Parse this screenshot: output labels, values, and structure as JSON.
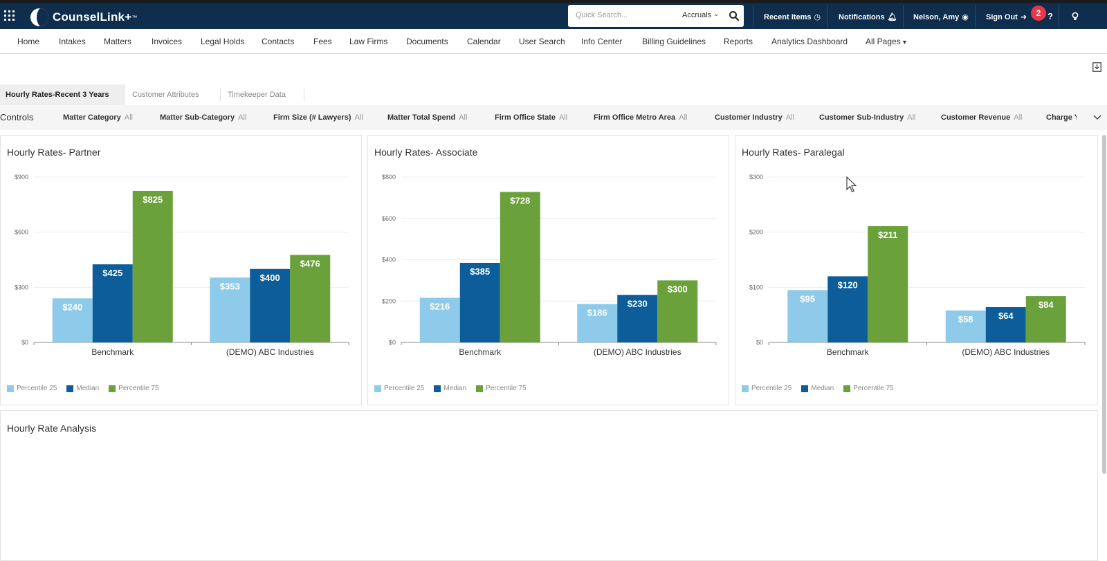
{
  "app": {
    "name": "CounselLink+",
    "tm": "™"
  },
  "search": {
    "placeholder": "Quick Search...",
    "scope": "Accruals"
  },
  "topnav": {
    "recent_items": "Recent Items",
    "notifications": "Notifications",
    "user": "Nelson, Amy",
    "sign_out": "Sign Out",
    "badge_count": "2",
    "help": "?"
  },
  "menu": {
    "items": [
      "Home",
      "Intakes",
      "Matters",
      "Invoices",
      "Legal Holds",
      "Contacts",
      "Fees",
      "Law Firms",
      "Documents",
      "Calendar",
      "User Search",
      "Info Center",
      "Billing Guidelines",
      "Reports",
      "Analytics Dashboard",
      "All Pages"
    ]
  },
  "tabs": [
    "Hourly Rates-Recent 3 Years",
    "Customer Attributes",
    "Timekeeper Data"
  ],
  "controls": {
    "label": "Controls",
    "filters": [
      {
        "name": "Matter Category",
        "value": "All"
      },
      {
        "name": "Matter Sub-Category",
        "value": "All"
      },
      {
        "name": "Firm Size (# Lawyers)",
        "value": "All"
      },
      {
        "name": "Matter Total Spend",
        "value": "All"
      },
      {
        "name": "Firm Office State",
        "value": "All"
      },
      {
        "name": "Firm Office Metro Area",
        "value": "All"
      },
      {
        "name": "Customer Industry",
        "value": "All"
      },
      {
        "name": "Customer Sub-Industry",
        "value": "All"
      },
      {
        "name": "Customer Revenue",
        "value": "All"
      },
      {
        "name": "Charge Y",
        "value": ""
      }
    ]
  },
  "colors": {
    "p25": "#8ecbeb",
    "median": "#0c5d99",
    "p75": "#6aa13a",
    "navy": "#0f2d4d"
  },
  "legend": [
    "Percentile 25",
    "Median",
    "Percentile 75"
  ],
  "chart_data": [
    {
      "type": "bar",
      "title": "Hourly Rates- Partner",
      "categories": [
        "Benchmark",
        "(DEMO) ABC Industries"
      ],
      "series": [
        {
          "name": "Percentile 25",
          "values": [
            240,
            353
          ]
        },
        {
          "name": "Median",
          "values": [
            425,
            400
          ]
        },
        {
          "name": "Percentile 75",
          "values": [
            825,
            476
          ]
        }
      ],
      "data_labels": [
        [
          "$240",
          "$353"
        ],
        [
          "$425",
          "$400"
        ],
        [
          "$825",
          "$476"
        ]
      ],
      "yticks": [
        0,
        300,
        600,
        900
      ],
      "ytick_labels": [
        "$0",
        "$300",
        "$600",
        "$900"
      ],
      "ylim": [
        0,
        900
      ],
      "legend": "bottom-left"
    },
    {
      "type": "bar",
      "title": "Hourly Rates- Associate",
      "categories": [
        "Benchmark",
        "(DEMO) ABC Industries"
      ],
      "series": [
        {
          "name": "Percentile 25",
          "values": [
            216,
            186
          ]
        },
        {
          "name": "Median",
          "values": [
            385,
            230
          ]
        },
        {
          "name": "Percentile 75",
          "values": [
            728,
            300
          ]
        }
      ],
      "data_labels": [
        [
          "$216",
          "$186"
        ],
        [
          "$385",
          "$230"
        ],
        [
          "$728",
          "$300"
        ]
      ],
      "yticks": [
        0,
        200,
        400,
        600,
        800
      ],
      "ytick_labels": [
        "$0",
        "$200",
        "$400",
        "$600",
        "$800"
      ],
      "ylim": [
        0,
        800
      ],
      "legend": "bottom-left"
    },
    {
      "type": "bar",
      "title": "Hourly Rates- Paralegal",
      "categories": [
        "Benchmark",
        "(DEMO) ABC Industries"
      ],
      "series": [
        {
          "name": "Percentile 25",
          "values": [
            95,
            58
          ]
        },
        {
          "name": "Median",
          "values": [
            120,
            64
          ]
        },
        {
          "name": "Percentile 75",
          "values": [
            211,
            84
          ]
        }
      ],
      "data_labels": [
        [
          "$95",
          "$58"
        ],
        [
          "$120",
          "$64"
        ],
        [
          "$211",
          "$84"
        ]
      ],
      "yticks": [
        0,
        100,
        200,
        300
      ],
      "ytick_labels": [
        "$0",
        "$100",
        "$200",
        "$300"
      ],
      "ylim": [
        0,
        300
      ],
      "legend": "bottom-left"
    }
  ],
  "analysis": {
    "title": "Hourly Rate Analysis"
  }
}
